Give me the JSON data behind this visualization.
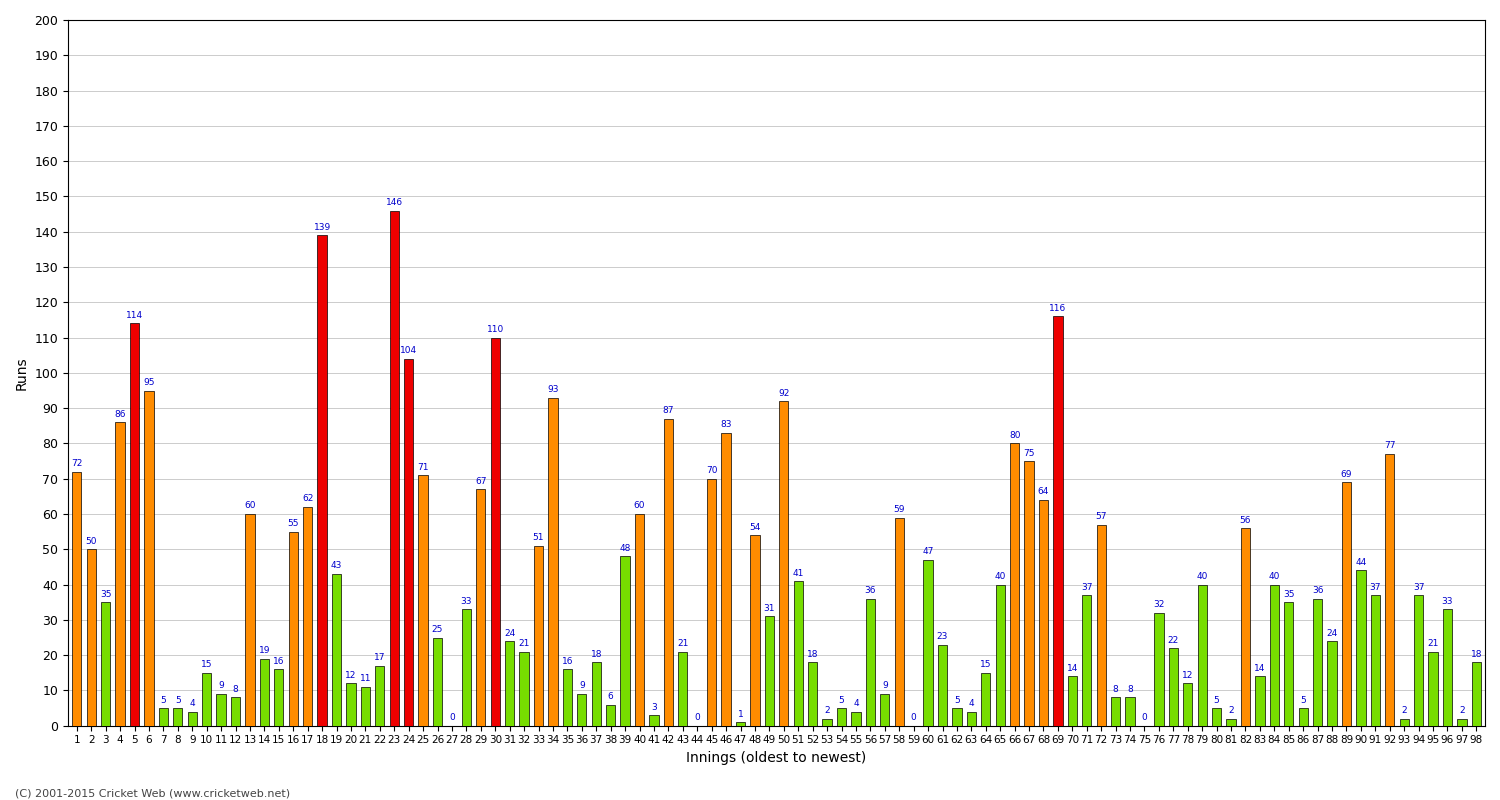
{
  "xlabel": "Innings (oldest to newest)",
  "ylabel": "Runs",
  "ylim": [
    0,
    200
  ],
  "yticks": [
    0,
    10,
    20,
    30,
    40,
    50,
    60,
    70,
    80,
    90,
    100,
    110,
    120,
    130,
    140,
    150,
    160,
    170,
    180,
    190,
    200
  ],
  "background_color": "#ffffff",
  "ax_bg_color": "#ffffff",
  "grid_color": "#cccccc",
  "innings": [
    1,
    2,
    3,
    4,
    5,
    6,
    7,
    8,
    9,
    10,
    11,
    12,
    13,
    14,
    15,
    16,
    17,
    18,
    19,
    20,
    21,
    22,
    23,
    24,
    25,
    26,
    27,
    28,
    29,
    30,
    31,
    32,
    33,
    34,
    35,
    36,
    37,
    38,
    39,
    40,
    41,
    42,
    43,
    44,
    45,
    46,
    47,
    48,
    49,
    50,
    51,
    52,
    53,
    54,
    55,
    56,
    57,
    58,
    59,
    60,
    61,
    62,
    63,
    64,
    65,
    66,
    67,
    68,
    69,
    70,
    71,
    72,
    73,
    74,
    75,
    76,
    77,
    78,
    79,
    80,
    81,
    82,
    83,
    84,
    85,
    86,
    87,
    88,
    89,
    90,
    91,
    92,
    93,
    94,
    95,
    96,
    97,
    98
  ],
  "values": [
    72,
    50,
    35,
    86,
    114,
    95,
    5,
    5,
    4,
    15,
    9,
    8,
    60,
    19,
    16,
    55,
    62,
    139,
    43,
    12,
    11,
    17,
    146,
    104,
    71,
    25,
    0,
    33,
    67,
    110,
    24,
    21,
    51,
    93,
    16,
    9,
    18,
    6,
    48,
    60,
    3,
    87,
    21,
    0,
    70,
    83,
    1,
    54,
    31,
    92,
    41,
    18,
    2,
    5,
    4,
    36,
    9,
    59,
    0,
    47,
    23,
    5,
    4,
    15,
    40,
    80,
    75,
    64,
    116,
    14,
    37,
    57,
    8,
    8,
    0,
    32,
    22,
    12,
    40,
    5,
    2,
    56,
    14,
    40,
    35,
    5,
    36,
    24,
    69,
    44,
    37,
    77,
    2,
    37,
    21,
    33,
    2,
    18
  ],
  "color_century": "#ee0000",
  "color_fifty": "#ff8c00",
  "color_other": "#77dd00",
  "label_color": "#0000cc",
  "title_color": "#000080",
  "footer_text": "(C) 2001-2015 Cricket Web (www.cricketweb.net)"
}
